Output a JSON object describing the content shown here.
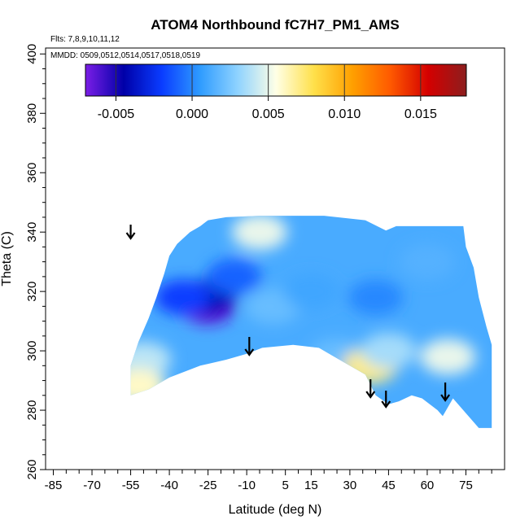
{
  "chart_data": {
    "type": "heatmap",
    "title": "ATOM4 Northbound fC7H7_PM1_AMS",
    "flights_note": "Flts: 7,8,9,10,11,12",
    "dates_note": "MMDD: 0509,0512,0514,0517,0518,0519",
    "xlabel": "Latitude (deg N)",
    "ylabel": "Theta (C)",
    "xlim": [
      -88,
      90
    ],
    "ylim": [
      260,
      402
    ],
    "x_ticks": [
      "-85",
      "-70",
      "-55",
      "-40",
      "-25",
      "-10",
      "5",
      "15",
      "30",
      "45",
      "60",
      "75"
    ],
    "y_ticks": [
      "260",
      "280",
      "300",
      "320",
      "340",
      "360",
      "380",
      "400"
    ],
    "colorbar": {
      "range": [
        -0.007,
        0.018
      ],
      "tick_values": [
        -0.005,
        0,
        0.005,
        0.01,
        0.015
      ],
      "tick_labels": [
        "-0.005",
        "0.000",
        "0.005",
        "0.010",
        "0.015"
      ],
      "colors": [
        "#7b1ee6",
        "#0000a8",
        "#0a3cff",
        "#2e9bff",
        "#8fd3ff",
        "#ffffe6",
        "#ffe04a",
        "#ffa000",
        "#ff5a00",
        "#d40000",
        "#8c1e1e"
      ]
    },
    "regions": [
      {
        "lat": -25,
        "theta": 315,
        "value": -0.0065
      },
      {
        "lat": -25,
        "theta": 318,
        "value": -0.004
      },
      {
        "lat": -35,
        "theta": 318,
        "value": -0.002
      },
      {
        "lat": -15,
        "theta": 325,
        "value": -0.001
      },
      {
        "lat": 0,
        "theta": 315,
        "value": 0.002
      },
      {
        "lat": 15,
        "theta": 320,
        "value": 0.001
      },
      {
        "lat": -5,
        "theta": 340,
        "value": 0.005
      },
      {
        "lat": 25,
        "theta": 298,
        "value": 0.002
      },
      {
        "lat": 38,
        "theta": 295,
        "value": 0.007
      },
      {
        "lat": 45,
        "theta": 300,
        "value": 0.0035
      },
      {
        "lat": 40,
        "theta": 318,
        "value": 0.0
      },
      {
        "lat": 60,
        "theta": 330,
        "value": 0.0015
      },
      {
        "lat": 68,
        "theta": 298,
        "value": 0.005
      },
      {
        "lat": -50,
        "theta": 297,
        "value": 0.004
      },
      {
        "lat": -52,
        "theta": 288,
        "value": 0.006
      }
    ],
    "arrows_lat": [
      -55,
      -9,
      38,
      44,
      67
    ],
    "arrow_direction": "down"
  }
}
